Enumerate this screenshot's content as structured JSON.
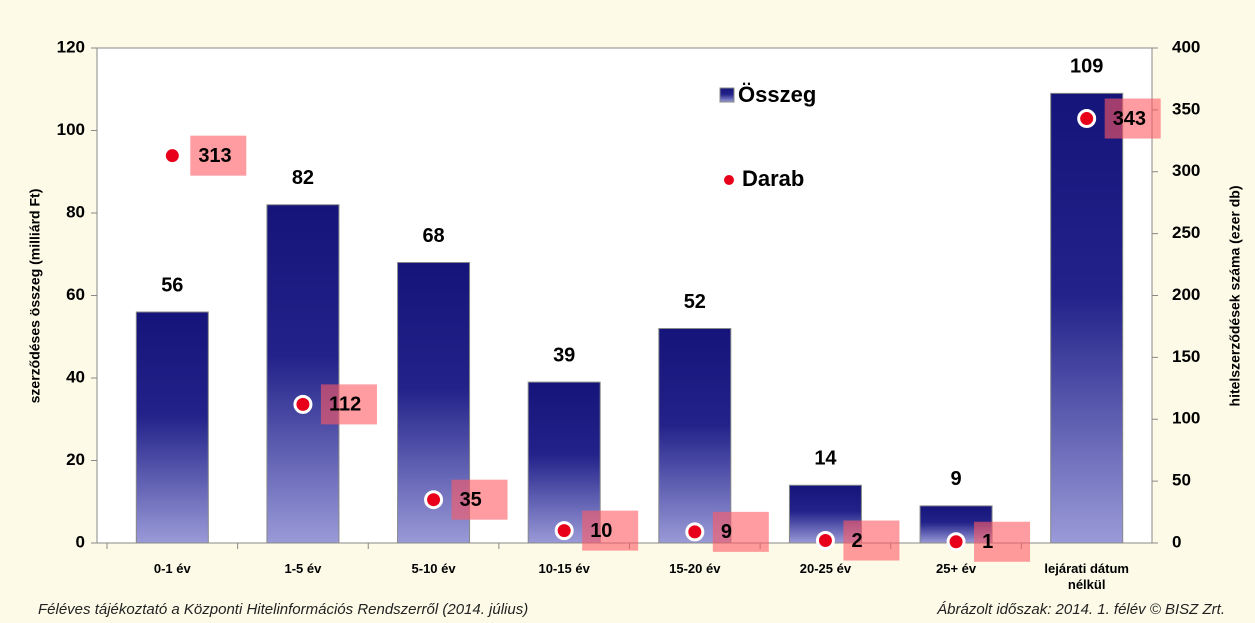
{
  "chart_data": {
    "type": "bar",
    "categories": [
      "0-1 év",
      "1-5 év",
      "5-10 év",
      "10-15 év",
      "15-20 év",
      "20-25 év",
      "25+ év",
      "lejárati dátum nélkül"
    ],
    "series": [
      {
        "name": "Összeg",
        "type": "bar",
        "color": "#1a1a7a",
        "values": [
          56,
          82,
          68,
          39,
          52,
          14,
          9,
          109
        ]
      },
      {
        "name": "Darab",
        "type": "scatter",
        "axis": "y2",
        "color": "#e8001a",
        "values": [
          313,
          112,
          35,
          10,
          9,
          2,
          1,
          343
        ]
      }
    ],
    "ylabel": "szerződéses összeg (milliárd Ft)",
    "y2label": "hitelszerződések száma (ezer db)",
    "ylim": [
      0,
      120
    ],
    "yticks": [
      0,
      20,
      40,
      60,
      80,
      100,
      120
    ],
    "y2lim": [
      0,
      400
    ],
    "y2ticks": [
      0,
      50,
      100,
      150,
      200,
      250,
      300,
      350,
      400
    ],
    "footer_left": "Féléves tájékoztató a Központi Hitelinformációs Rendszerről (2014. július)",
    "footer_right": "Ábrázolt időszak: 2014. 1. félév © BISZ Zrt."
  }
}
